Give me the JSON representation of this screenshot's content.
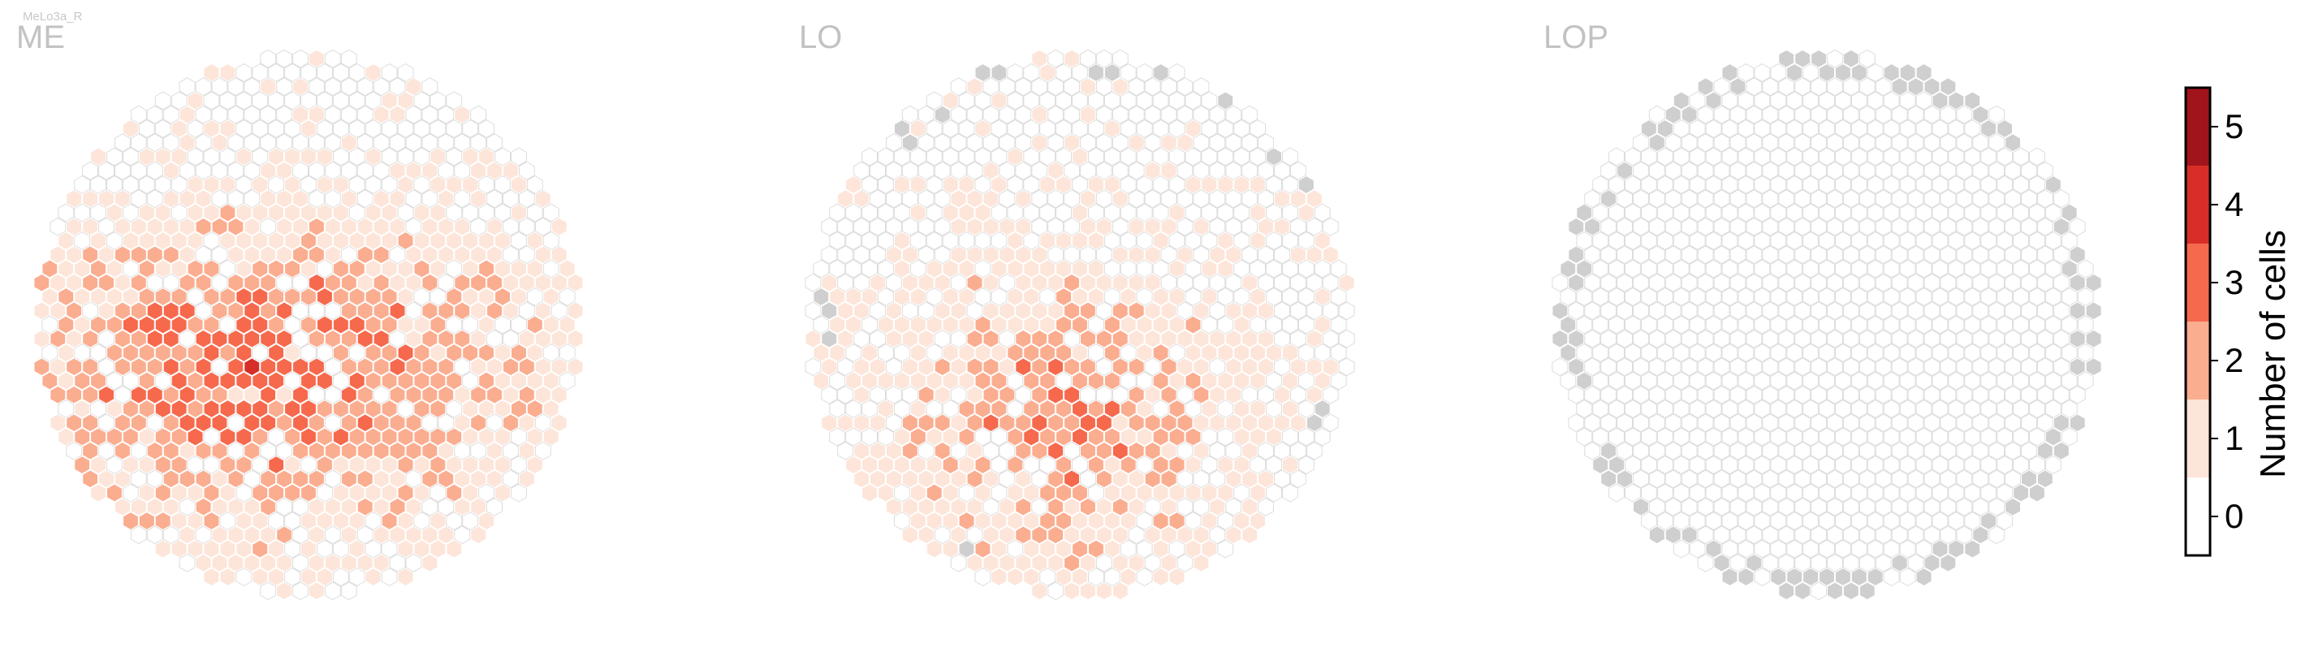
{
  "cell_type": "MeLo3a_R",
  "panels": [
    "ME",
    "LO",
    "LOP"
  ],
  "chart_data": {
    "type": "heatmap",
    "subtype": "hexagonal column map per neuropil",
    "cell_type": "MeLo3a_R",
    "panels": [
      {
        "name": "ME",
        "hot_center": [
          0.42,
          0.22
        ],
        "hot_sigma": [
          0.3,
          0.16
        ],
        "hot_peak": 5.6,
        "y_cutoff": 0.78,
        "cutoff_softness": 0.16,
        "spread_right": 0.92,
        "missing_rim": false
      },
      {
        "name": "LO",
        "hot_center": [
          0.46,
          0.3
        ],
        "hot_sigma": [
          0.2,
          0.17
        ],
        "hot_peak": 5.1,
        "y_cutoff": 0.58,
        "cutoff_softness": 0.14,
        "spread_right": 0.75,
        "missing_rim": true,
        "missing_rim_fraction": 0.14
      },
      {
        "name": "LOP",
        "hot_center": [
          0.5,
          0.5
        ],
        "hot_sigma": [
          0.1,
          0.1
        ],
        "hot_peak": 0,
        "y_cutoff": 2.0,
        "cutoff_softness": 0.1,
        "spread_right": 0,
        "missing_rim": true,
        "missing_rim_fraction": 0.55
      }
    ],
    "colorbar": {
      "label": "Number of cells",
      "ticks": [
        0,
        1,
        2,
        3,
        4,
        5
      ],
      "range": [
        -0.5,
        5.5
      ],
      "bins": [
        {
          "from": -0.5,
          "to": 0.5,
          "color": "#ffffff"
        },
        {
          "from": 0.5,
          "to": 1.5,
          "color": "#fde5d9"
        },
        {
          "from": 1.5,
          "to": 2.5,
          "color": "#fbad90"
        },
        {
          "from": 2.5,
          "to": 3.5,
          "color": "#f6694d"
        },
        {
          "from": 3.5,
          "to": 4.5,
          "color": "#d72f28"
        },
        {
          "from": 4.5,
          "to": 5.5,
          "color": "#a2141b"
        }
      ]
    },
    "colors": {
      "empty_stroke": "#dddddd",
      "missing_fill": "#cfcfcf",
      "filled_stroke": "#ffffff"
    }
  }
}
